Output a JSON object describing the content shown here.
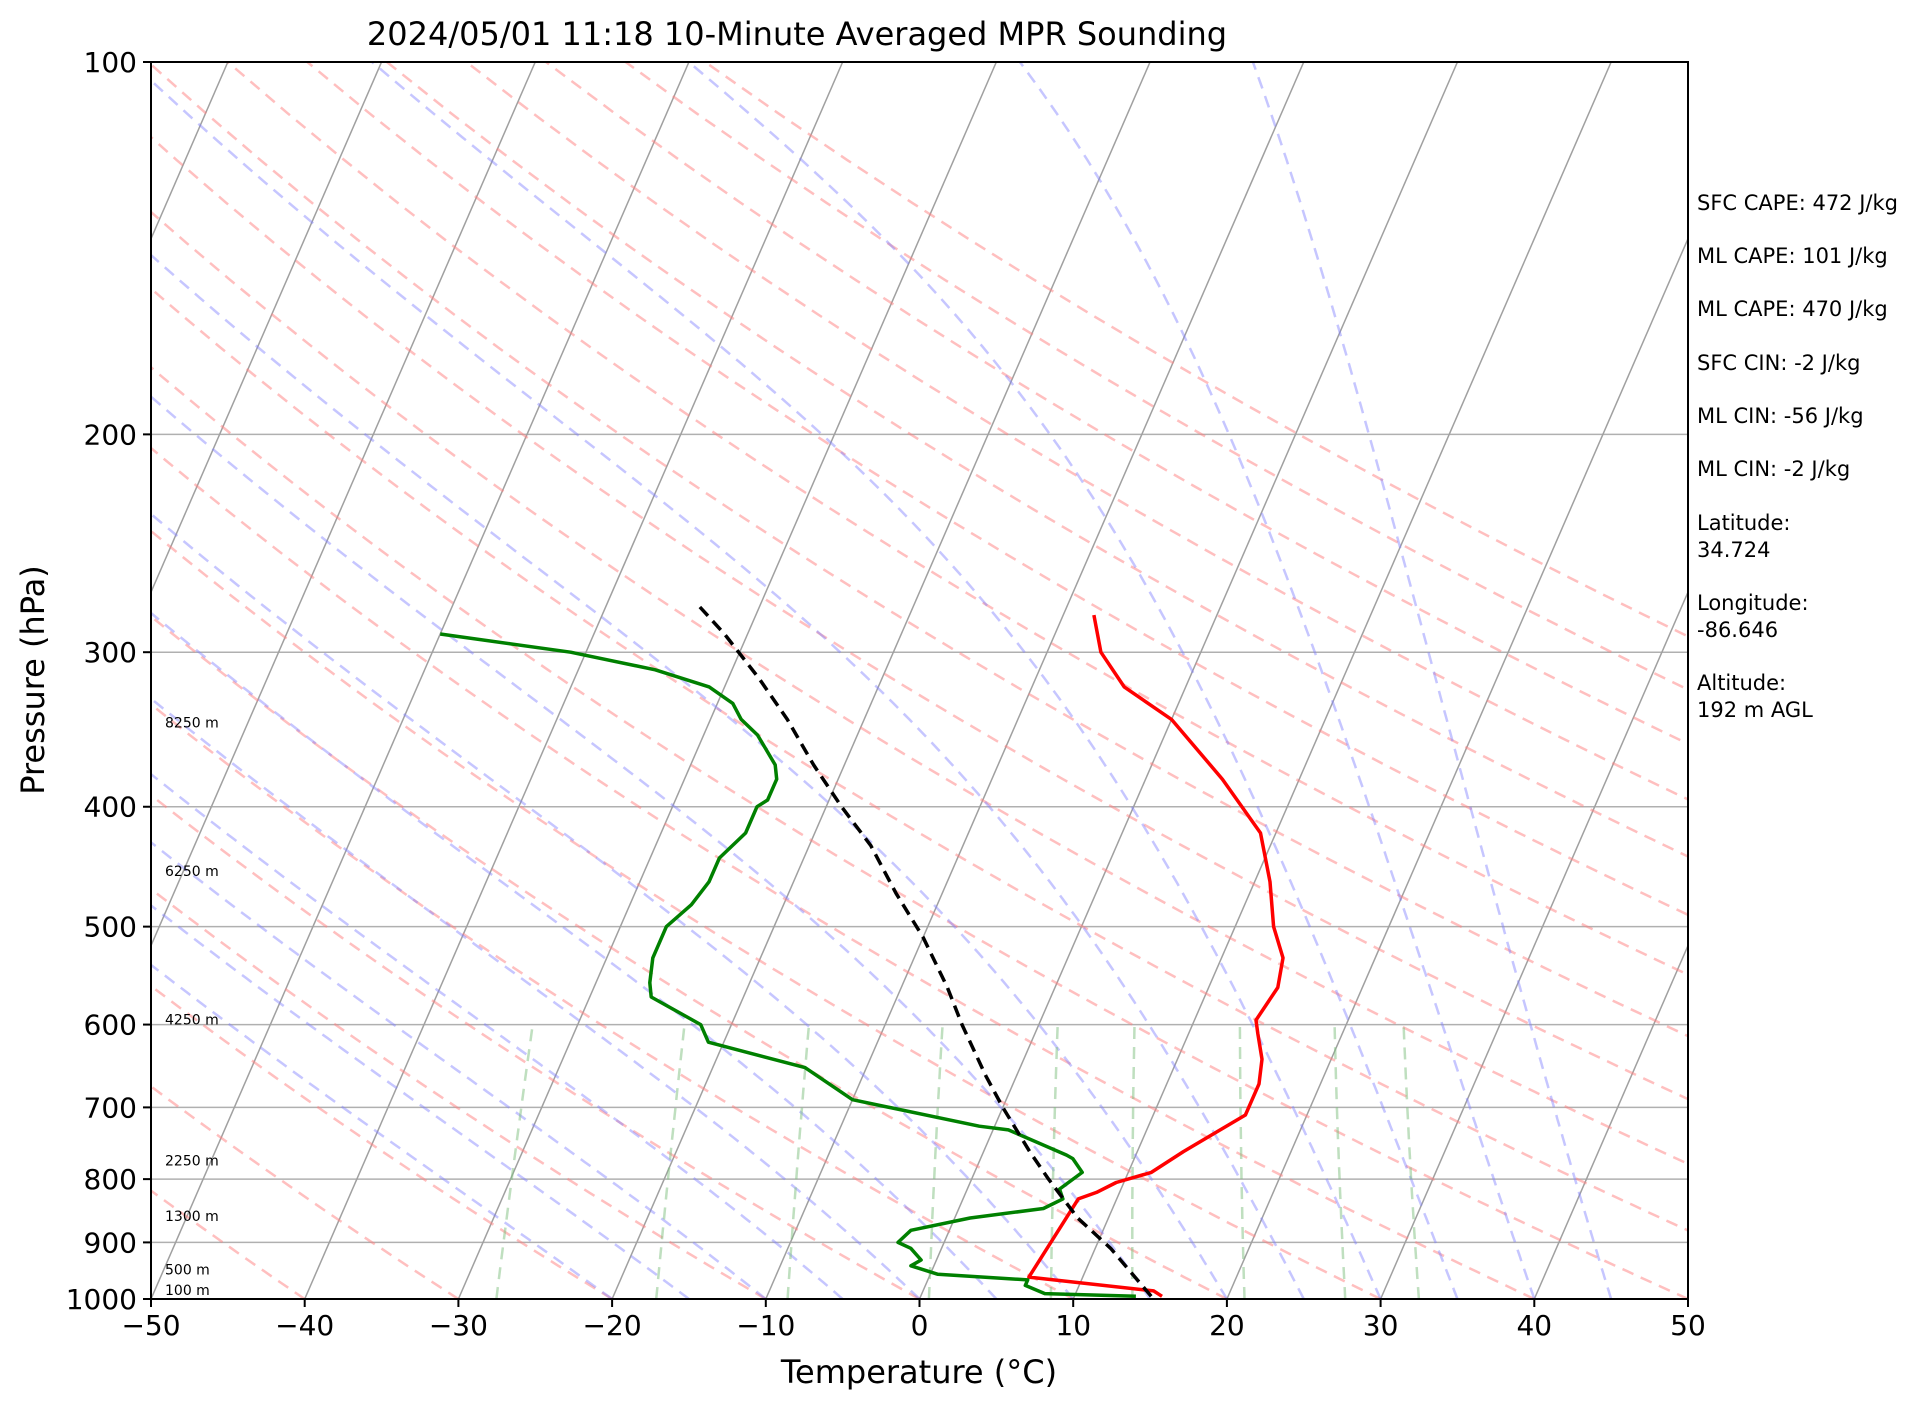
{
  "chart_data": {
    "type": "line",
    "title": "2024/05/01 11:18 10-Minute Averaged MPR Sounding",
    "xlabel": "Temperature (°C)",
    "ylabel": "Pressure (hPa)",
    "xlim": [
      -50,
      50
    ],
    "ylim": [
      1000,
      100
    ],
    "y_scale": "log",
    "skew": true,
    "grid": true,
    "x_ticks": [
      "−50",
      "−40",
      "−30",
      "−20",
      "−10",
      "0",
      "10",
      "20",
      "30",
      "40",
      "50"
    ],
    "y_ticks": [
      "100",
      "200",
      "300",
      "400",
      "500",
      "600",
      "700",
      "800",
      "900",
      "1000"
    ],
    "height_labels": [
      {
        "text": "8250 m",
        "pressure": 345
      },
      {
        "text": "6250 m",
        "pressure": 455
      },
      {
        "text": "4250 m",
        "pressure": 600
      },
      {
        "text": "2250 m",
        "pressure": 780
      },
      {
        "text": "1300 m",
        "pressure": 865
      },
      {
        "text": "500 m",
        "pressure": 955
      },
      {
        "text": "100 m",
        "pressure": 993
      }
    ],
    "series": [
      {
        "color": "#ff0000",
        "x": [
          15.7,
          15.0,
          6.5,
          7.5,
          8.5,
          9.5,
          11.5,
          13.0,
          16.0,
          16.0,
          16.0,
          15.5,
          14.5,
          14.0,
          14.5,
          14.0,
          12.5,
          11.0,
          9.0,
          5.0,
          0.0,
          -4.0,
          -6.5,
          -8.0
        ],
        "y": [
          995,
          985,
          960,
          830,
          820,
          805,
          790,
          760,
          710,
          690,
          670,
          640,
          610,
          595,
          560,
          530,
          500,
          460,
          420,
          380,
          340,
          320,
          300,
          280
        ]
      },
      {
        "color": "#008000",
        "x": [
          14.0,
          8.0,
          6.5,
          6.5,
          0.5,
          -1.5,
          -1.0,
          -2.0,
          -3.0,
          -2.5,
          1.0,
          5.5,
          6.5,
          6.0,
          7.0,
          6.0,
          5.5,
          1.0,
          -1.0,
          -10.0,
          -14.0,
          -21.0,
          -22.0,
          -26.0,
          -26.5,
          -27.0,
          -27.0,
          -26.0,
          -25.5,
          -25.5,
          -24.5,
          -24.5,
          -24.0,
          -24.0,
          -24.5,
          -26.5,
          -28.0,
          -29.0,
          -31.0,
          -35.0,
          -41.0,
          -50.0
        ],
        "y": [
          995,
          990,
          975,
          965,
          955,
          940,
          930,
          910,
          900,
          880,
          860,
          845,
          830,
          815,
          790,
          770,
          765,
          730,
          725,
          690,
          650,
          620,
          600,
          570,
          555,
          530,
          500,
          480,
          460,
          440,
          420,
          400,
          395,
          380,
          370,
          350,
          340,
          330,
          320,
          310,
          300,
          290
        ]
      },
      {
        "color": "#000000",
        "x": [
          15.0,
          11.0,
          8.0,
          5.0,
          3.0,
          0.0,
          -2.0,
          -5.0,
          -7.0,
          -10.0,
          -13.0,
          -16.0,
          -19.0,
          -22.0,
          -25.0,
          -28.0,
          -31.5,
          -34.0
        ],
        "y": [
          995,
          910,
          860,
          800,
          760,
          700,
          660,
          600,
          560,
          510,
          470,
          430,
          400,
          370,
          340,
          315,
          290,
          275
        ]
      }
    ]
  },
  "info_panel": [
    "SFC CAPE: 472 J/kg",
    "ML CAPE: 101 J/kg",
    "ML CAPE: 470 J/kg",
    "SFC CIN: -2 J/kg",
    "ML CIN: -56 J/kg",
    "ML CIN: -2 J/kg",
    "Latitude:",
    "34.724",
    "Longitude:",
    "-86.646",
    "Altitude:",
    "192 m AGL"
  ],
  "colors": {
    "temperature": "#ff0000",
    "dewpoint": "#008000",
    "parcel": "#000000",
    "dry_adiabat": "#ff8080",
    "moist_adiabat": "#8080ff",
    "mixing_ratio": "#80c080",
    "isotherm": "#808080"
  }
}
